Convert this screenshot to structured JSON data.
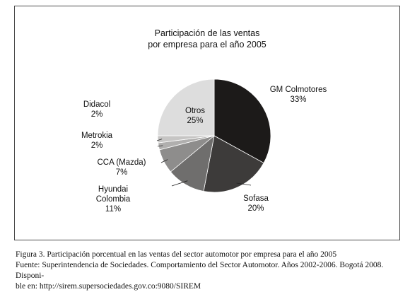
{
  "chart_data": {
    "type": "pie",
    "title_line1": "Participación de las ventas",
    "title_line2": "por empresa para el año 2005",
    "slices": [
      {
        "name": "GM Colmotores",
        "value": 33,
        "pct": "33%",
        "color": "#1c1a19"
      },
      {
        "name": "Sofasa",
        "value": 20,
        "pct": "20%",
        "color": "#3d3b3a"
      },
      {
        "name": "Hyundai Colombia",
        "value": 11,
        "pct": "11%",
        "color": "#6f6e6d"
      },
      {
        "name": "CCA (Mazda)",
        "value": 7,
        "pct": "7%",
        "color": "#8e8d8c"
      },
      {
        "name": "Metrokia",
        "value": 2,
        "pct": "2%",
        "color": "#b0afae"
      },
      {
        "name": "Didacol",
        "value": 2,
        "pct": "2%",
        "color": "#c6c5c4"
      },
      {
        "name": "Otros",
        "value": 25,
        "pct": "25%",
        "color": "#dddddd"
      }
    ]
  },
  "caption": {
    "line1": "Figura 3. Participación porcentual en las ventas del sector automotor por empresa para el año 2005",
    "line2": "Fuente: Superintendencia de Sociedades. Comportamiento del Sector Automotor. Años 2002-2006. Bogotá 2008. Disponi-",
    "line3": "ble en: http://sirem.supersociedades.gov.co:9080/SIREM"
  }
}
